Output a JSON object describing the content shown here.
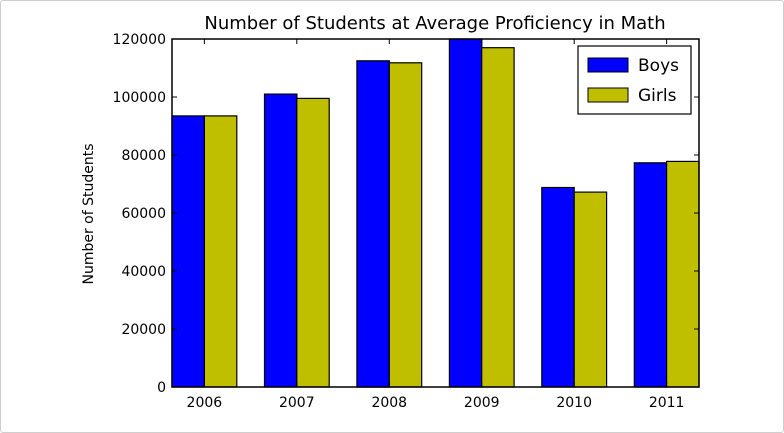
{
  "chart_data": {
    "type": "bar",
    "title": "Number of Students at Average Proficiency in Math",
    "xlabel": "",
    "ylabel": "Number of Students",
    "categories": [
      "2006",
      "2007",
      "2008",
      "2009",
      "2010",
      "2011"
    ],
    "series": [
      {
        "name": "Boys",
        "color": "#0000ff",
        "values": [
          93500,
          101000,
          112500,
          120000,
          68800,
          77300
        ]
      },
      {
        "name": "Girls",
        "color": "#bfbf00",
        "values": [
          93500,
          99500,
          111800,
          117000,
          67200,
          77800
        ]
      }
    ],
    "ylim": [
      0,
      120000
    ],
    "yticks": [
      "0",
      "20000",
      "40000",
      "60000",
      "80000",
      "100000",
      "120000"
    ],
    "grid": false,
    "legend_position": "top-right"
  }
}
